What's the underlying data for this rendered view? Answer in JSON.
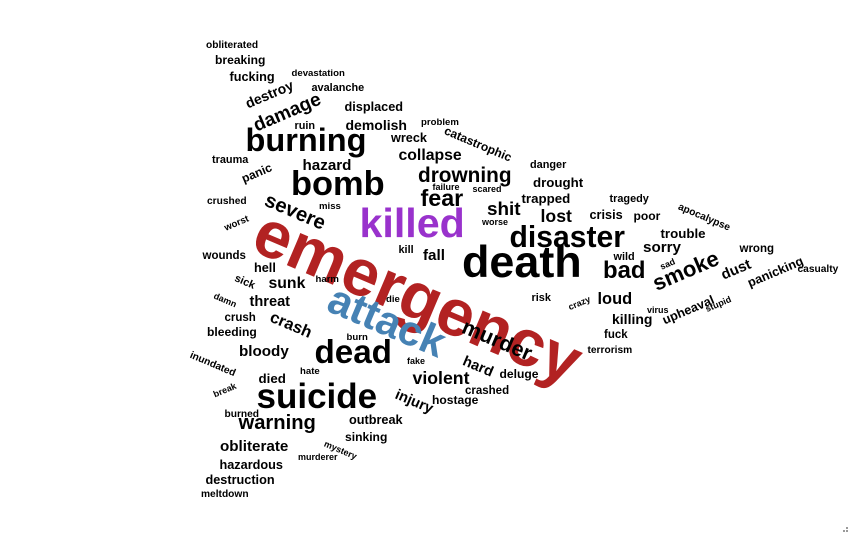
{
  "chart_data": {
    "type": "wordcloud",
    "colors": {
      "default": "#000000",
      "red": "#b22222",
      "purple": "#9932cc",
      "blue": "#4682b4"
    },
    "words": [
      {
        "text": "emergency",
        "weight": 100,
        "color": "#b22222"
      },
      {
        "text": "death",
        "weight": 66,
        "color": "#000000"
      },
      {
        "text": "attack",
        "weight": 62,
        "color": "#4682b4"
      },
      {
        "text": "killed",
        "weight": 60,
        "color": "#9932cc"
      },
      {
        "text": "suicide",
        "weight": 50,
        "color": "#000000"
      },
      {
        "text": "bomb",
        "weight": 49,
        "color": "#000000"
      },
      {
        "text": "dead",
        "weight": 47,
        "color": "#000000"
      },
      {
        "text": "burning",
        "weight": 46,
        "color": "#000000"
      },
      {
        "text": "disaster",
        "weight": 42,
        "color": "#000000"
      },
      {
        "text": "bad",
        "weight": 32,
        "color": "#000000"
      },
      {
        "text": "fear",
        "weight": 31,
        "color": "#000000"
      },
      {
        "text": "smoke",
        "weight": 29,
        "color": "#000000"
      },
      {
        "text": "murder",
        "weight": 28,
        "color": "#000000"
      },
      {
        "text": "drowning",
        "weight": 27,
        "color": "#000000"
      },
      {
        "text": "severe",
        "weight": 26,
        "color": "#000000"
      },
      {
        "text": "warning",
        "weight": 26,
        "color": "#000000"
      },
      {
        "text": "shit",
        "weight": 24,
        "color": "#000000"
      },
      {
        "text": "damage",
        "weight": 24,
        "color": "#000000"
      },
      {
        "text": "lost",
        "weight": 22,
        "color": "#000000"
      },
      {
        "text": "violent",
        "weight": 22,
        "color": "#000000"
      },
      {
        "text": "loud",
        "weight": 20,
        "color": "#000000"
      },
      {
        "text": "crash",
        "weight": 20,
        "color": "#000000"
      },
      {
        "text": "collapse",
        "weight": 19,
        "color": "#000000"
      },
      {
        "text": "sunk",
        "weight": 19,
        "color": "#000000"
      },
      {
        "text": "hazard",
        "weight": 18,
        "color": "#000000"
      },
      {
        "text": "obliterate",
        "weight": 18,
        "color": "#000000"
      },
      {
        "text": "bloody",
        "weight": 18,
        "color": "#000000"
      },
      {
        "text": "sorry",
        "weight": 18,
        "color": "#000000"
      },
      {
        "text": "fall",
        "weight": 18,
        "color": "#000000"
      },
      {
        "text": "injury",
        "weight": 17,
        "color": "#000000"
      },
      {
        "text": "hard",
        "weight": 17,
        "color": "#000000"
      },
      {
        "text": "threat",
        "weight": 17,
        "color": "#000000"
      },
      {
        "text": "dust",
        "weight": 17,
        "color": "#000000"
      },
      {
        "text": "destroy",
        "weight": 16,
        "color": "#000000"
      },
      {
        "text": "demolish",
        "weight": 16,
        "color": "#000000"
      },
      {
        "text": "killing",
        "weight": 16,
        "color": "#000000"
      },
      {
        "text": "trapped",
        "weight": 15,
        "color": "#000000"
      },
      {
        "text": "died",
        "weight": 15,
        "color": "#000000"
      },
      {
        "text": "drought",
        "weight": 15,
        "color": "#000000"
      },
      {
        "text": "trouble",
        "weight": 15,
        "color": "#000000"
      },
      {
        "text": "upheaval",
        "weight": 14,
        "color": "#000000"
      },
      {
        "text": "panicking",
        "weight": 14,
        "color": "#000000"
      },
      {
        "text": "crisis",
        "weight": 14,
        "color": "#000000"
      },
      {
        "text": "displaced",
        "weight": 14,
        "color": "#000000"
      },
      {
        "text": "hell",
        "weight": 14,
        "color": "#000000"
      },
      {
        "text": "outbreak",
        "weight": 14,
        "color": "#000000"
      },
      {
        "text": "hazardous",
        "weight": 14,
        "color": "#000000"
      },
      {
        "text": "destruction",
        "weight": 14,
        "color": "#000000"
      },
      {
        "text": "fucking",
        "weight": 14,
        "color": "#000000"
      },
      {
        "text": "breaking",
        "weight": 13,
        "color": "#000000"
      },
      {
        "text": "wreck",
        "weight": 14,
        "color": "#000000"
      },
      {
        "text": "panic",
        "weight": 13,
        "color": "#000000"
      },
      {
        "text": "bleeding",
        "weight": 13,
        "color": "#000000"
      },
      {
        "text": "poor",
        "weight": 13,
        "color": "#000000"
      },
      {
        "text": "catastrophic",
        "weight": 13,
        "color": "#000000"
      },
      {
        "text": "hostage",
        "weight": 13,
        "color": "#000000"
      },
      {
        "text": "deluge",
        "weight": 13,
        "color": "#000000"
      },
      {
        "text": "sinking",
        "weight": 13,
        "color": "#000000"
      },
      {
        "text": "wounds",
        "weight": 12,
        "color": "#000000"
      },
      {
        "text": "crush",
        "weight": 12,
        "color": "#000000"
      },
      {
        "text": "fuck",
        "weight": 12,
        "color": "#000000"
      },
      {
        "text": "crashed",
        "weight": 12,
        "color": "#000000"
      },
      {
        "text": "wrong",
        "weight": 12,
        "color": "#000000"
      },
      {
        "text": "tragedy",
        "weight": 11,
        "color": "#000000"
      },
      {
        "text": "wild",
        "weight": 11,
        "color": "#000000"
      },
      {
        "text": "risk",
        "weight": 11,
        "color": "#000000"
      },
      {
        "text": "danger",
        "weight": 11,
        "color": "#000000"
      },
      {
        "text": "trauma",
        "weight": 11,
        "color": "#000000"
      },
      {
        "text": "ruin",
        "weight": 11,
        "color": "#000000"
      },
      {
        "text": "avalanche",
        "weight": 11,
        "color": "#000000"
      },
      {
        "text": "sick",
        "weight": 11,
        "color": "#000000"
      },
      {
        "text": "kill",
        "weight": 11,
        "color": "#000000"
      },
      {
        "text": "casualty",
        "weight": 10,
        "color": "#000000"
      },
      {
        "text": "apocalypse",
        "weight": 10,
        "color": "#000000"
      },
      {
        "text": "obliterated",
        "weight": 10,
        "color": "#000000"
      },
      {
        "text": "crushed",
        "weight": 10,
        "color": "#000000"
      },
      {
        "text": "burned",
        "weight": 10,
        "color": "#000000"
      },
      {
        "text": "terrorism",
        "weight": 10,
        "color": "#000000"
      },
      {
        "text": "meltdown",
        "weight": 10,
        "color": "#000000"
      },
      {
        "text": "inundated",
        "weight": 10,
        "color": "#000000"
      },
      {
        "text": "devastation",
        "weight": 9,
        "color": "#000000"
      },
      {
        "text": "worst",
        "weight": 9,
        "color": "#000000"
      },
      {
        "text": "harm",
        "weight": 9,
        "color": "#000000"
      },
      {
        "text": "die",
        "weight": 9,
        "color": "#000000"
      },
      {
        "text": "burn",
        "weight": 9,
        "color": "#000000"
      },
      {
        "text": "problem",
        "weight": 9,
        "color": "#000000"
      },
      {
        "text": "miss",
        "weight": 9,
        "color": "#000000"
      },
      {
        "text": "hate",
        "weight": 9,
        "color": "#000000"
      },
      {
        "text": "fake",
        "weight": 8,
        "color": "#000000"
      },
      {
        "text": "sad",
        "weight": 8,
        "color": "#000000"
      },
      {
        "text": "stupid",
        "weight": 8,
        "color": "#000000"
      },
      {
        "text": "virus",
        "weight": 8,
        "color": "#000000"
      },
      {
        "text": "crazy",
        "weight": 8,
        "color": "#000000"
      },
      {
        "text": "damn",
        "weight": 8,
        "color": "#000000"
      },
      {
        "text": "break",
        "weight": 8,
        "color": "#000000"
      },
      {
        "text": "failure",
        "weight": 8,
        "color": "#000000"
      },
      {
        "text": "scared",
        "weight": 8,
        "color": "#000000"
      },
      {
        "text": "worse",
        "weight": 8,
        "color": "#000000"
      },
      {
        "text": "murderer",
        "weight": 8,
        "color": "#000000"
      },
      {
        "text": "mystery",
        "weight": 8,
        "color": "#000000"
      }
    ]
  }
}
